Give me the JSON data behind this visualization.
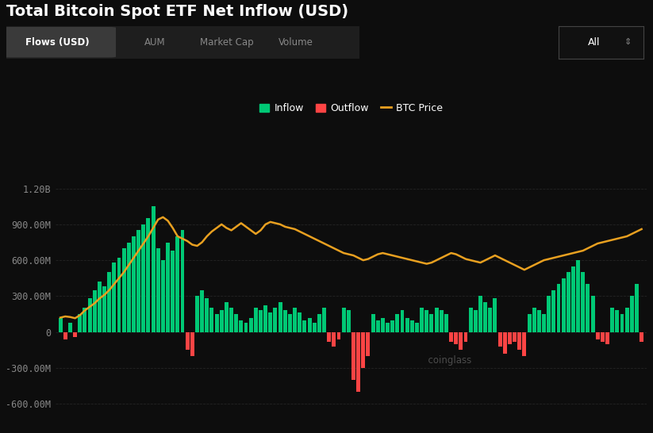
{
  "title": "Total Bitcoin Spot ETF Net Inflow (USD)",
  "background_color": "#0d0d0d",
  "plot_bg_color": "#0d0d0d",
  "grid_color": "#2a2a2a",
  "tab_labels": [
    "Flows (USD)",
    "AUM",
    "Market Cap",
    "Volume"
  ],
  "dropdown_label": "All",
  "legend_items": [
    {
      "label": "Inflow",
      "color": "#00c875",
      "type": "bar"
    },
    {
      "label": "Outflow",
      "color": "#ff4444",
      "type": "bar"
    },
    {
      "label": "BTC Price",
      "color": "#e8a020",
      "type": "line"
    }
  ],
  "ytick_vals": [
    1200000000,
    900000000,
    600000000,
    300000000,
    0,
    -300000000,
    -600000000
  ],
  "ytick_labels": [
    "1.20B",
    "900.00M",
    "600.00M",
    "300.00M",
    "0",
    "-300.00M",
    "-600.00M"
  ],
  "ylim": [
    -700000000,
    1400000000
  ],
  "inflow_color": "#00c875",
  "outflow_color": "#ff4444",
  "btc_color": "#e8a020",
  "bar_width": 0.8,
  "bar_vals": [
    120,
    -60,
    80,
    -40,
    150,
    200,
    280,
    350,
    420,
    380,
    500,
    580,
    620,
    700,
    750,
    800,
    850,
    900,
    950,
    1050,
    700,
    600,
    750,
    680,
    800,
    850,
    -150,
    -200,
    300,
    350,
    280,
    200,
    150,
    180,
    250,
    200,
    150,
    100,
    80,
    120,
    200,
    180,
    220,
    160,
    200,
    250,
    180,
    150,
    200,
    160,
    100,
    120,
    80,
    150,
    200,
    -80,
    -120,
    -60,
    200,
    180,
    -400,
    -500,
    -300,
    -200,
    150,
    100,
    120,
    80,
    100,
    150,
    180,
    120,
    100,
    80,
    200,
    180,
    150,
    200,
    180,
    150,
    -80,
    -100,
    -150,
    -80,
    200,
    180,
    300,
    250,
    200,
    280,
    -120,
    -180,
    -100,
    -80,
    -150,
    -200,
    150,
    200,
    180,
    150,
    300,
    350,
    400,
    450,
    500,
    550,
    600,
    500,
    400,
    300,
    -60,
    -80,
    -100,
    200,
    180,
    150,
    200,
    300,
    400,
    -80
  ],
  "btc_vals": [
    120,
    130,
    125,
    115,
    140,
    180,
    210,
    240,
    280,
    310,
    350,
    400,
    450,
    500,
    560,
    620,
    680,
    740,
    800,
    870,
    940,
    960,
    930,
    870,
    800,
    780,
    760,
    730,
    720,
    750,
    800,
    840,
    870,
    900,
    870,
    850,
    880,
    910,
    880,
    850,
    820,
    850,
    900,
    920,
    910,
    900,
    880,
    870,
    860,
    840,
    820,
    800,
    780,
    760,
    740,
    720,
    700,
    680,
    660,
    650,
    640,
    620,
    600,
    610,
    630,
    650,
    660,
    650,
    640,
    630,
    620,
    610,
    600,
    590,
    580,
    570,
    580,
    600,
    620,
    640,
    660,
    650,
    630,
    610,
    600,
    590,
    580,
    600,
    620,
    640,
    620,
    600,
    580,
    560,
    540,
    520,
    540,
    560,
    580,
    600,
    610,
    620,
    630,
    640,
    650,
    660,
    670,
    680,
    700,
    720,
    740,
    750,
    760,
    770,
    780,
    790,
    800,
    820,
    840,
    860
  ]
}
